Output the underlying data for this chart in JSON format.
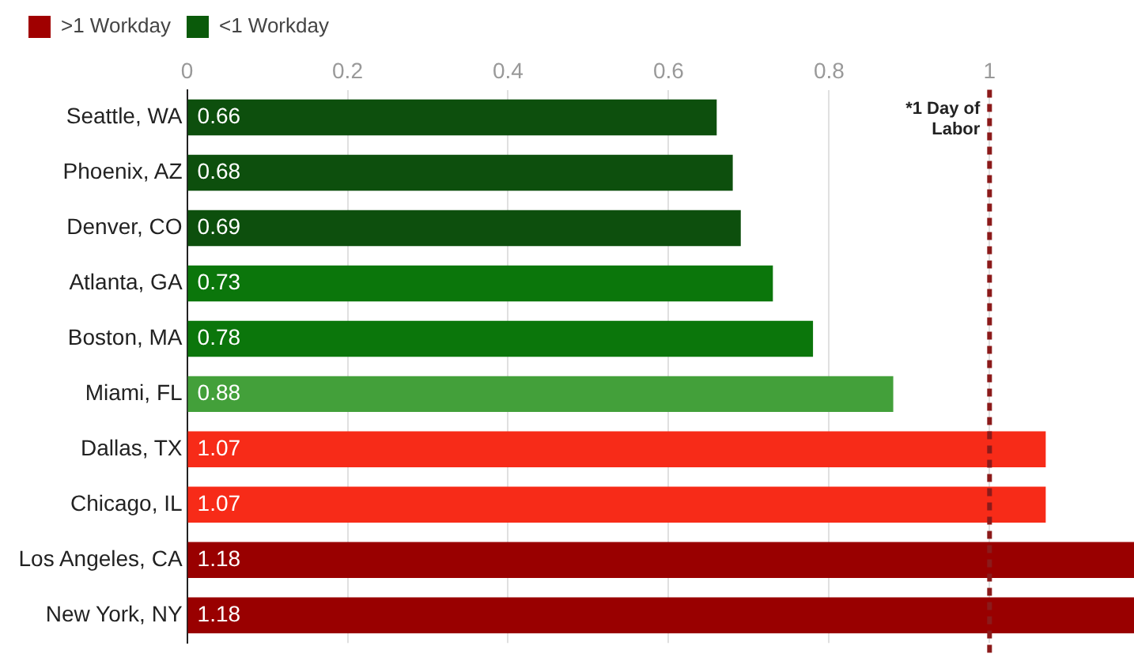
{
  "chart_data": {
    "type": "bar",
    "orientation": "horizontal",
    "stacked": true,
    "categories": [
      "Seattle, WA",
      "Phoenix, AZ",
      "Denver, CO",
      "Atlanta, GA",
      "Boston, MA",
      "Miami, FL",
      "Dallas, TX",
      "Chicago, IL",
      "Los Angeles, CA",
      "New York, NY"
    ],
    "series": [
      {
        "name": ">1 Workday",
        "color": "#a00000",
        "values": [
          null,
          null,
          null,
          null,
          null,
          null,
          1.07,
          1.07,
          1.18,
          1.18
        ],
        "colors": [
          "#990000",
          "#990000",
          "#990000",
          "#990000",
          "#990000",
          "#990000",
          "#f72b18",
          "#f72b18",
          "#990000",
          "#990000"
        ]
      },
      {
        "name": "<1 Workday",
        "color": "#0a5a0a",
        "values": [
          0.66,
          0.68,
          0.69,
          0.73,
          0.78,
          0.88,
          null,
          null,
          null,
          null
        ],
        "colors": [
          "#0d4f0d",
          "#0d4f0d",
          "#0d4f0d",
          "#0b760b",
          "#0b760b",
          "#43a03a",
          "#0b760b",
          "#0b760b",
          "#0b760b",
          "#0b760b"
        ]
      }
    ],
    "xlim": [
      0,
      1.18
    ],
    "xticks": [
      0,
      0.2,
      0.4,
      0.6,
      0.8,
      1
    ],
    "grid": "x",
    "legend": "top left",
    "data_labels": true,
    "ref_lines": [
      {
        "axis": "x",
        "value": 1,
        "label": "*1 Day of Labor",
        "color": "#8b1a1a",
        "line_style": "dashed"
      }
    ]
  }
}
